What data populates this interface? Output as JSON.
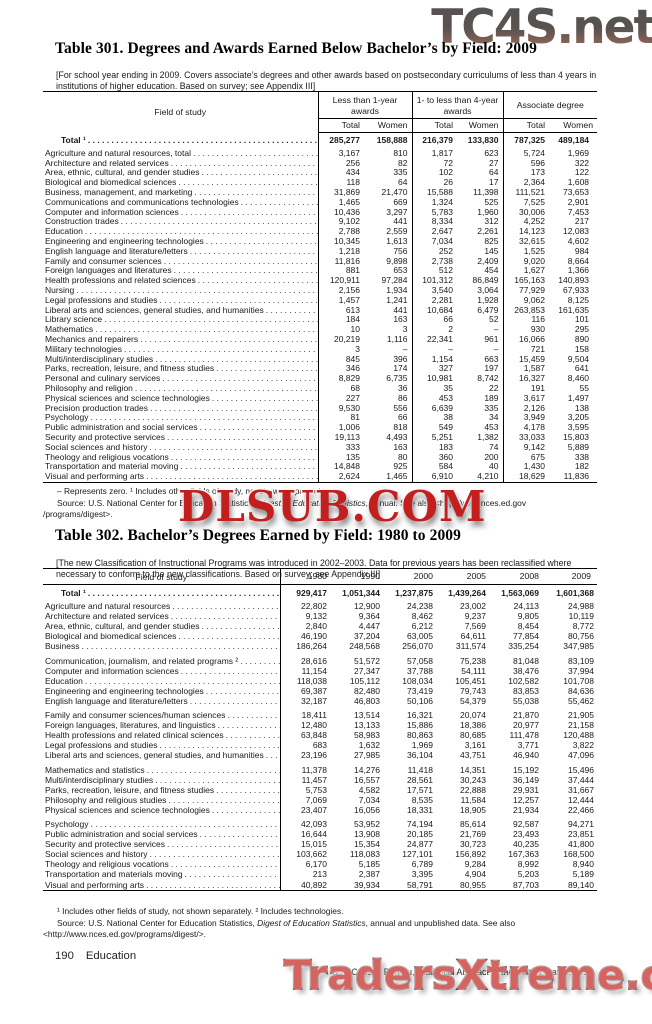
{
  "watermarks": {
    "top": "TC4S.net",
    "middle": "DLSUB.COM",
    "bottom": "TradersXtreme.com"
  },
  "table301": {
    "title": "Table 301. Degrees and Awards Earned Below Bachelor’s by Field: 2009",
    "note": "[For school year ending in 2009. Covers associate’s degrees and other awards based on postsecondary curriculums of less than 4 years in institutions of higher education. Based on survey; see Appendix III]",
    "field_header": "Field of study",
    "group_headers": [
      "Less than 1-year awards",
      "1- to less than 4-year awards",
      "Associate degree"
    ],
    "sub_headers": [
      "Total",
      "Women"
    ],
    "total_row": {
      "label": "Total ¹",
      "values": [
        "285,277",
        "158,888",
        "216,379",
        "133,830",
        "787,325",
        "489,184"
      ]
    },
    "rows": [
      {
        "label": "Agriculture and natural resources, total",
        "values": [
          "3,167",
          "810",
          "1,817",
          "623",
          "5,724",
          "1,969"
        ]
      },
      {
        "label": "Architecture and related services",
        "values": [
          "256",
          "82",
          "72",
          "27",
          "596",
          "322"
        ]
      },
      {
        "label": "Area, ethnic, cultural, and gender studies",
        "values": [
          "434",
          "335",
          "102",
          "64",
          "173",
          "122"
        ]
      },
      {
        "label": "Biological and biomedical sciences",
        "values": [
          "118",
          "64",
          "26",
          "17",
          "2,364",
          "1,608"
        ]
      },
      {
        "label": "Business, management, and marketing",
        "values": [
          "31,869",
          "21,470",
          "15,588",
          "11,398",
          "111,521",
          "73,653"
        ]
      },
      {
        "label": "Communications and communications technologies",
        "values": [
          "1,465",
          "669",
          "1,324",
          "525",
          "7,525",
          "2,901"
        ]
      },
      {
        "label": "Computer and information sciences",
        "values": [
          "10,436",
          "3,297",
          "5,783",
          "1,960",
          "30,006",
          "7,453"
        ]
      },
      {
        "label": "Construction trades",
        "values": [
          "9,102",
          "441",
          "8,334",
          "312",
          "4,252",
          "217"
        ]
      },
      {
        "label": "Education",
        "values": [
          "2,788",
          "2,559",
          "2,647",
          "2,261",
          "14,123",
          "12,083"
        ]
      },
      {
        "label": "Engineering and engineering technologies",
        "values": [
          "10,345",
          "1,613",
          "7,034",
          "825",
          "32,615",
          "4,602"
        ]
      },
      {
        "label": "English language and literature/letters",
        "values": [
          "1,218",
          "756",
          "252",
          "145",
          "1,525",
          "984"
        ]
      },
      {
        "label": "Family and consumer sciences",
        "values": [
          "11,816",
          "9,898",
          "2,738",
          "2,409",
          "9,020",
          "8,664"
        ]
      },
      {
        "label": "Foreign languages and literatures",
        "values": [
          "881",
          "653",
          "512",
          "454",
          "1,627",
          "1,366"
        ]
      },
      {
        "label": "Health professions and related sciences",
        "values": [
          "120,911",
          "97,284",
          "101,312",
          "86,849",
          "165,163",
          "140,893"
        ]
      },
      {
        "label": "Nursing",
        "values": [
          "2,156",
          "1,934",
          "3,540",
          "3,064",
          "77,929",
          "67,933"
        ]
      },
      {
        "label": "Legal professions and studies",
        "values": [
          "1,457",
          "1,241",
          "2,281",
          "1,928",
          "9,062",
          "8,125"
        ]
      },
      {
        "label": "Liberal arts and sciences, general studies, and humanities",
        "values": [
          "613",
          "441",
          "10,684",
          "6,479",
          "263,853",
          "161,635"
        ]
      },
      {
        "label": "Library science",
        "values": [
          "184",
          "163",
          "66",
          "52",
          "116",
          "101"
        ]
      },
      {
        "label": "Mathematics",
        "values": [
          "10",
          "3",
          "2",
          "–",
          "930",
          "295"
        ]
      },
      {
        "label": "Mechanics and repairers",
        "values": [
          "20,219",
          "1,116",
          "22,341",
          "961",
          "16,066",
          "890"
        ]
      },
      {
        "label": "Military technologies",
        "values": [
          "3",
          "–",
          "–",
          "–",
          "721",
          "158"
        ]
      },
      {
        "label": "Multi/interdisciplinary studies",
        "values": [
          "845",
          "396",
          "1,154",
          "663",
          "15,459",
          "9,504"
        ]
      },
      {
        "label": "Parks, recreation, leisure, and fitness studies",
        "values": [
          "346",
          "174",
          "327",
          "197",
          "1,587",
          "641"
        ]
      },
      {
        "label": "Personal and culinary services",
        "values": [
          "8,829",
          "6,735",
          "10,981",
          "8,742",
          "16,327",
          "8,460"
        ]
      },
      {
        "label": "Philosophy and religion",
        "values": [
          "68",
          "36",
          "35",
          "22",
          "191",
          "55"
        ]
      },
      {
        "label": "Physical sciences and science technologies",
        "values": [
          "227",
          "86",
          "453",
          "189",
          "3,617",
          "1,497"
        ]
      },
      {
        "label": "Precision production trades",
        "values": [
          "9,530",
          "556",
          "6,639",
          "335",
          "2,126",
          "138"
        ]
      },
      {
        "label": "Psychology",
        "values": [
          "81",
          "66",
          "38",
          "34",
          "3,949",
          "3,205"
        ]
      },
      {
        "label": "Public administration and social services",
        "values": [
          "1,006",
          "818",
          "549",
          "453",
          "4,178",
          "3,595"
        ]
      },
      {
        "label": "Security and protective services",
        "values": [
          "19,113",
          "4,493",
          "5,251",
          "1,382",
          "33,033",
          "15,803"
        ]
      },
      {
        "label": "Social sciences and history",
        "values": [
          "333",
          "163",
          "183",
          "74",
          "9,142",
          "5,889"
        ]
      },
      {
        "label": "Theology and religious vocations",
        "values": [
          "135",
          "80",
          "360",
          "200",
          "675",
          "338"
        ]
      },
      {
        "label": "Transportation and material moving",
        "values": [
          "14,848",
          "925",
          "584",
          "40",
          "1,430",
          "182"
        ]
      },
      {
        "label": "Visual and performing arts",
        "values": [
          "2,624",
          "1,465",
          "6,910",
          "4,210",
          "18,629",
          "11,836"
        ]
      }
    ],
    "footnote": "– Represents zero. ¹ Includes other fields of study, not shown separately.",
    "source": {
      "prefix": "Source: U.S. National Center for Education Statistics, ",
      "italic": "Digest of Education Statistics",
      "suffix": ", annual. See also <http://www.nces.ed.gov",
      "line2": "/programs/digest>."
    }
  },
  "table302": {
    "title": "Table 302. Bachelor’s Degrees Earned by Field: 1980 to 2009",
    "note": "[The new Classification of Instructional Programs was introduced in 2002–2003. Data for previous years has been reclassified where necessary to conform to the new classifications. Based on survey; see Appendix III]",
    "field_header": "Field of study",
    "year_headers": [
      "1980",
      "1990",
      "2000",
      "2005",
      "2008",
      "2009"
    ],
    "total_row": {
      "label": "Total ¹",
      "values": [
        "929,417",
        "1,051,344",
        "1,237,875",
        "1,439,264",
        "1,563,069",
        "1,601,368"
      ]
    },
    "rows": [
      {
        "label": "Agriculture and natural resources",
        "values": [
          "22,802",
          "12,900",
          "24,238",
          "23,002",
          "24,113",
          "24,988"
        ]
      },
      {
        "label": "Architecture and related services",
        "values": [
          "9,132",
          "9,364",
          "8,462",
          "9,237",
          "9,805",
          "10,119"
        ]
      },
      {
        "label": "Area, ethnic, cultural, and gender studies",
        "values": [
          "2,840",
          "4,447",
          "6,212",
          "7,569",
          "8,454",
          "8,772"
        ]
      },
      {
        "label": "Biological and biomedical sciences",
        "values": [
          "46,190",
          "37,204",
          "63,005",
          "64,611",
          "77,854",
          "80,756"
        ]
      },
      {
        "label": "Business",
        "values": [
          "186,264",
          "248,568",
          "256,070",
          "311,574",
          "335,254",
          "347,985"
        ],
        "gap_after": true
      },
      {
        "label": "Communication, journalism, and related programs ²",
        "values": [
          "28,616",
          "51,572",
          "57,058",
          "75,238",
          "81,048",
          "83,109"
        ]
      },
      {
        "label": "Computer and information sciences",
        "values": [
          "11,154",
          "27,347",
          "37,788",
          "54,111",
          "38,476",
          "37,994"
        ]
      },
      {
        "label": "Education",
        "values": [
          "118,038",
          "105,112",
          "108,034",
          "105,451",
          "102,582",
          "101,708"
        ]
      },
      {
        "label": "Engineering and engineering technologies",
        "values": [
          "69,387",
          "82,480",
          "73,419",
          "79,743",
          "83,853",
          "84,636"
        ]
      },
      {
        "label": "English language and literature/letters",
        "values": [
          "32,187",
          "46,803",
          "50,106",
          "54,379",
          "55,038",
          "55,462"
        ],
        "gap_after": true
      },
      {
        "label": "Family and consumer sciences/human sciences",
        "values": [
          "18,411",
          "13,514",
          "16,321",
          "20,074",
          "21,870",
          "21,905"
        ]
      },
      {
        "label": "Foreign languages, literatures, and linguistics",
        "values": [
          "12,480",
          "13,133",
          "15,886",
          "18,386",
          "20,977",
          "21,158"
        ]
      },
      {
        "label": "Health professions and related clinical sciences",
        "values": [
          "63,848",
          "58,983",
          "80,863",
          "80,685",
          "111,478",
          "120,488"
        ]
      },
      {
        "label": "Legal professions and studies",
        "values": [
          "683",
          "1,632",
          "1,969",
          "3,161",
          "3,771",
          "3,822"
        ]
      },
      {
        "label": "Liberal arts and sciences, general studies, and humanities",
        "values": [
          "23,196",
          "27,985",
          "36,104",
          "43,751",
          "46,940",
          "47,096"
        ],
        "gap_after": true
      },
      {
        "label": "Mathematics and statistics",
        "values": [
          "11,378",
          "14,276",
          "11,418",
          "14,351",
          "15,192",
          "15,496"
        ]
      },
      {
        "label": "Multi/interdisciplinary studies",
        "values": [
          "11,457",
          "16,557",
          "28,561",
          "30,243",
          "36,149",
          "37,444"
        ]
      },
      {
        "label": "Parks, recreation, leisure, and fitness studies",
        "values": [
          "5,753",
          "4,582",
          "17,571",
          "22,888",
          "29,931",
          "31,667"
        ]
      },
      {
        "label": "Philosophy and religious studies",
        "values": [
          "7,069",
          "7,034",
          "8,535",
          "11,584",
          "12,257",
          "12,444"
        ]
      },
      {
        "label": "Physical sciences and science technologies",
        "values": [
          "23,407",
          "16,056",
          "18,331",
          "18,905",
          "21,934",
          "22,466"
        ],
        "gap_after": true
      },
      {
        "label": "Psychology",
        "values": [
          "42,093",
          "53,952",
          "74,194",
          "85,614",
          "92,587",
          "94,271"
        ]
      },
      {
        "label": "Public administration and social services",
        "values": [
          "16,644",
          "13,908",
          "20,185",
          "21,769",
          "23,493",
          "23,851"
        ]
      },
      {
        "label": "Security and protective services",
        "values": [
          "15,015",
          "15,354",
          "24,877",
          "30,723",
          "40,235",
          "41,800"
        ]
      },
      {
        "label": "Social sciences and history",
        "values": [
          "103,662",
          "118,083",
          "127,101",
          "156,892",
          "167,363",
          "168,500"
        ]
      },
      {
        "label": "Theology and religious vocations",
        "values": [
          "6,170",
          "5,185",
          "6,789",
          "9,284",
          "8,992",
          "8,940"
        ]
      },
      {
        "label": "Transportation and materials moving",
        "values": [
          "213",
          "2,387",
          "3,395",
          "4,904",
          "5,203",
          "5,189"
        ]
      },
      {
        "label": "Visual and performing arts",
        "values": [
          "40,892",
          "39,934",
          "58,791",
          "80,955",
          "87,703",
          "89,140"
        ]
      }
    ],
    "footnote": "¹ Includes other fields of study, not shown separately. ² Includes technologies.",
    "source": {
      "prefix": "Source: U.S. National Center for Education  Statistics, ",
      "italic": "Digest of Education Statistics",
      "suffix": ", annual and unpublished data. See also",
      "line2": "<http://www.nces.ed.gov/programs/digest/>."
    }
  },
  "footer": {
    "page_number": "190",
    "section": "Education",
    "source": "U.S. Census Bureau, Statistical Abstract of the United States: 2012"
  }
}
